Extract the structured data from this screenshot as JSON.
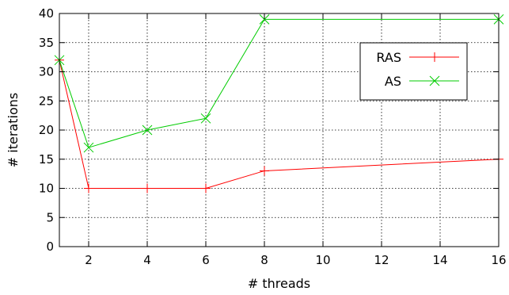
{
  "chart_data": {
    "type": "line",
    "xlabel": "# threads",
    "ylabel": "# iterations",
    "xlim": [
      1,
      16
    ],
    "ylim": [
      0,
      40
    ],
    "x_ticks": [
      2,
      4,
      6,
      8,
      10,
      12,
      14,
      16
    ],
    "y_ticks": [
      0,
      5,
      10,
      15,
      20,
      25,
      30,
      35,
      40
    ],
    "grid": true,
    "legend_position": "top-right",
    "series": [
      {
        "name": "RAS",
        "color": "#ff0000",
        "marker": "plus",
        "x": [
          1,
          2,
          4,
          6,
          8,
          16
        ],
        "y": [
          32,
          10,
          10,
          10,
          13,
          15
        ]
      },
      {
        "name": "AS",
        "color": "#00cc00",
        "marker": "cross",
        "x": [
          1,
          2,
          4,
          6,
          8,
          16
        ],
        "y": [
          32,
          17,
          20,
          22,
          39,
          39
        ]
      }
    ]
  }
}
